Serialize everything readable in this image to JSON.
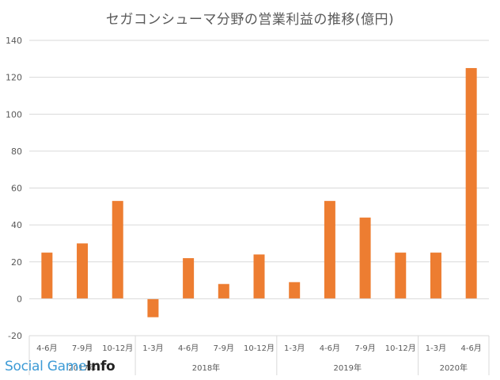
{
  "chart_data": {
    "type": "bar",
    "title": "セガコンシューマ分野の営業利益の推移(億円)",
    "categories": [
      "4-6月",
      "7-9月",
      "10-12月",
      "1-3月",
      "4-6月",
      "7-9月",
      "10-12月",
      "1-3月",
      "4-6月",
      "7-9月",
      "10-12月",
      "1-3月",
      "4-6月"
    ],
    "groups": [
      {
        "label": "2017年",
        "count": 3
      },
      {
        "label": "2018年",
        "count": 4
      },
      {
        "label": "2019年",
        "count": 4
      },
      {
        "label": "2020年",
        "count": 2
      }
    ],
    "values": [
      25,
      30,
      53,
      -10,
      22,
      8,
      24,
      9,
      53,
      44,
      25,
      25,
      125
    ],
    "ylim": [
      -20,
      140
    ],
    "yticks": [
      -20,
      0,
      20,
      40,
      60,
      80,
      100,
      120,
      140
    ],
    "xlabel": "",
    "ylabel": "",
    "grid": true,
    "bar_color": "#ed7d31"
  },
  "watermark": {
    "part1": "Social Game",
    "part2": "Info"
  }
}
